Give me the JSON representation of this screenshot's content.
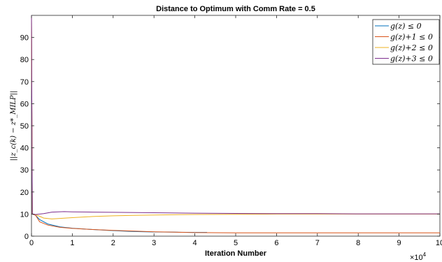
{
  "chart_data": {
    "type": "line",
    "title": "Distance to Optimum with Comm Rate = 0.5",
    "xlabel": "Iteration Number",
    "ylabel": "||z_c(k) − z*_MILP||",
    "x_exponent_base": "×10",
    "x_exponent_power": "4",
    "xlim": [
      0,
      10
    ],
    "ylim": [
      0,
      100
    ],
    "x_ticks": [
      0,
      1,
      2,
      3,
      4,
      5,
      6,
      7,
      8,
      9,
      10
    ],
    "y_ticks": [
      0,
      10,
      20,
      30,
      40,
      50,
      60,
      70,
      80,
      90
    ],
    "grid": false,
    "legend_position": "top-right",
    "series": [
      {
        "name": "g(z) ≤ 0",
        "color": "#0072BD",
        "x": [
          0,
          0.02,
          0.1,
          0.2,
          0.4,
          0.7,
          1.0,
          1.5,
          2.0,
          2.5,
          3.0,
          3.5,
          4.0,
          4.3
        ],
        "y": [
          100,
          10,
          9.5,
          7.5,
          5.5,
          4.2,
          3.6,
          3.0,
          2.5,
          2.1,
          1.9,
          1.8,
          1.7,
          1.7
        ]
      },
      {
        "name": "g(z)+1 ≤ 0",
        "color": "#D95319",
        "x": [
          0,
          0.02,
          0.1,
          0.2,
          0.4,
          0.7,
          1.0,
          1.5,
          2.0,
          2.5,
          3.0,
          3.5,
          4.0,
          5.0,
          6.0,
          7.0,
          8.0,
          9.0,
          10.0
        ],
        "y": [
          100,
          10,
          9.5,
          6.5,
          5.0,
          4.0,
          3.5,
          3.0,
          2.6,
          2.3,
          2.0,
          1.8,
          1.6,
          1.5,
          1.5,
          1.5,
          1.5,
          1.5,
          1.5
        ]
      },
      {
        "name": "g(z)+2 ≤ 0",
        "color": "#EDB120",
        "x": [
          0,
          0.02,
          0.1,
          0.3,
          0.5,
          1.0,
          1.5,
          2.0,
          2.5,
          3.0,
          4.0,
          5.0,
          6.0,
          7.0,
          8.0,
          9.0,
          10.0
        ],
        "y": [
          100,
          10,
          9.8,
          8.2,
          7.8,
          8.4,
          8.9,
          9.2,
          9.4,
          9.6,
          9.8,
          9.9,
          10.0,
          10.0,
          10.0,
          10.0,
          10.0
        ]
      },
      {
        "name": "g(z)+3 ≤ 0",
        "color": "#7E2F8E",
        "x": [
          0,
          0.02,
          0.1,
          0.3,
          0.5,
          0.8,
          1.0,
          1.5,
          2.0,
          3.0,
          4.0,
          5.0,
          6.0,
          7.0,
          8.0,
          9.0,
          10.0
        ],
        "y": [
          100,
          10,
          9.8,
          10.2,
          10.9,
          11.1,
          11.0,
          10.9,
          10.8,
          10.6,
          10.4,
          10.3,
          10.2,
          10.2,
          10.1,
          10.1,
          10.1
        ]
      }
    ]
  }
}
